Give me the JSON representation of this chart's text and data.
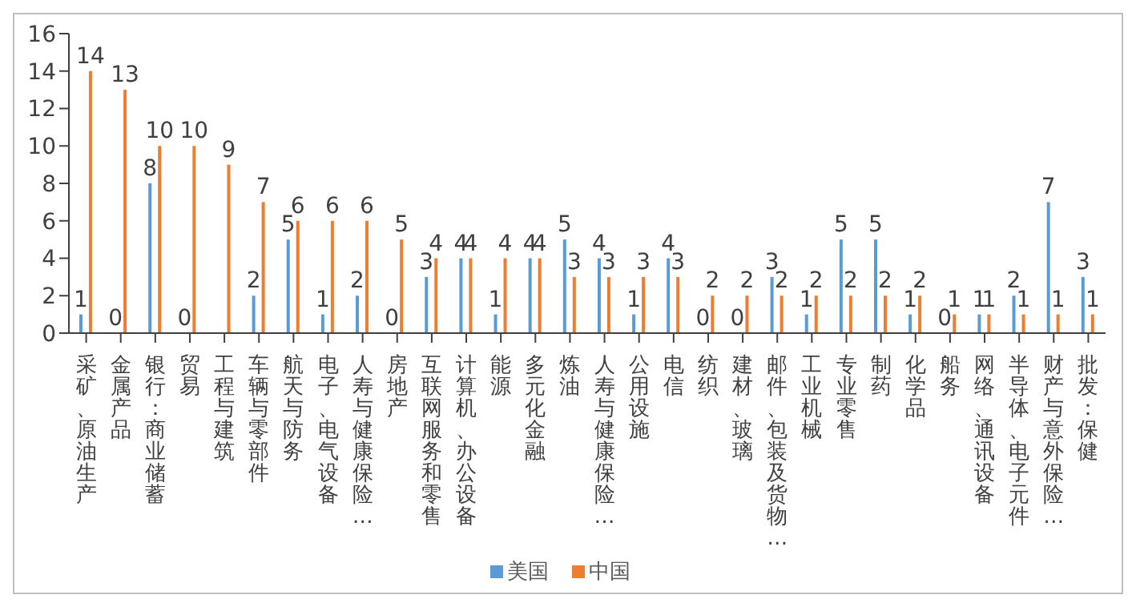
{
  "chart_data": {
    "type": "bar",
    "categories": [
      "采矿、原油生产",
      "金属产品",
      "银行：商业储蓄",
      "贸易",
      "工程与建筑",
      "车辆与零部件",
      "航天与防务",
      "电子、电气设备",
      "人寿与健康保险…",
      "房地产",
      "互联网服务和零售",
      "计算机、办公设备",
      "能源",
      "多元化金融",
      "炼油",
      "人寿与健康保险…",
      "公用设施",
      "电信",
      "纺织",
      "建材、玻璃",
      "邮件、包装及货物…",
      "工业机械",
      "专业零售",
      "制药",
      "化学品",
      "船务",
      "网络、通讯设备",
      "半导体、电子元件",
      "财产与意外保险…",
      "批发：保健"
    ],
    "series": [
      {
        "name": "美国",
        "color": "#5b9bd5",
        "values": [
          1,
          0,
          8,
          0,
          0,
          2,
          5,
          1,
          2,
          0,
          3,
          4,
          1,
          4,
          5,
          4,
          1,
          4,
          0,
          0,
          3,
          1,
          5,
          5,
          1,
          0,
          1,
          2,
          7,
          3
        ],
        "value_labels": [
          "1",
          "0",
          "8",
          "0",
          null,
          "2",
          "5",
          "1",
          "2",
          "0",
          "3",
          "4",
          "1",
          "4",
          "5",
          "4",
          "1",
          "4",
          "0",
          "0",
          "3",
          "1",
          "5",
          "5",
          "1",
          "0",
          "1",
          "2",
          "7",
          "3"
        ]
      },
      {
        "name": "中国",
        "color": "#ed7d31",
        "values": [
          14,
          13,
          10,
          10,
          9,
          7,
          6,
          6,
          6,
          5,
          4,
          4,
          4,
          4,
          3,
          3,
          3,
          3,
          2,
          2,
          2,
          2,
          2,
          2,
          2,
          1,
          1,
          1,
          1,
          1
        ],
        "value_labels": [
          "14",
          "13",
          "10",
          "10",
          "9",
          "7",
          "6",
          "6",
          "6",
          "5",
          "4",
          "4",
          "4",
          "4",
          "3",
          "3",
          "3",
          "3",
          "2",
          "2",
          "2",
          "2",
          "2",
          "2",
          "2",
          "1",
          "1",
          "1",
          "1",
          "1"
        ]
      }
    ],
    "ylim": [
      0,
      16
    ],
    "yticks": [
      0,
      2,
      4,
      6,
      8,
      10,
      12,
      14,
      16
    ],
    "legend": "bottom",
    "grid": false
  }
}
